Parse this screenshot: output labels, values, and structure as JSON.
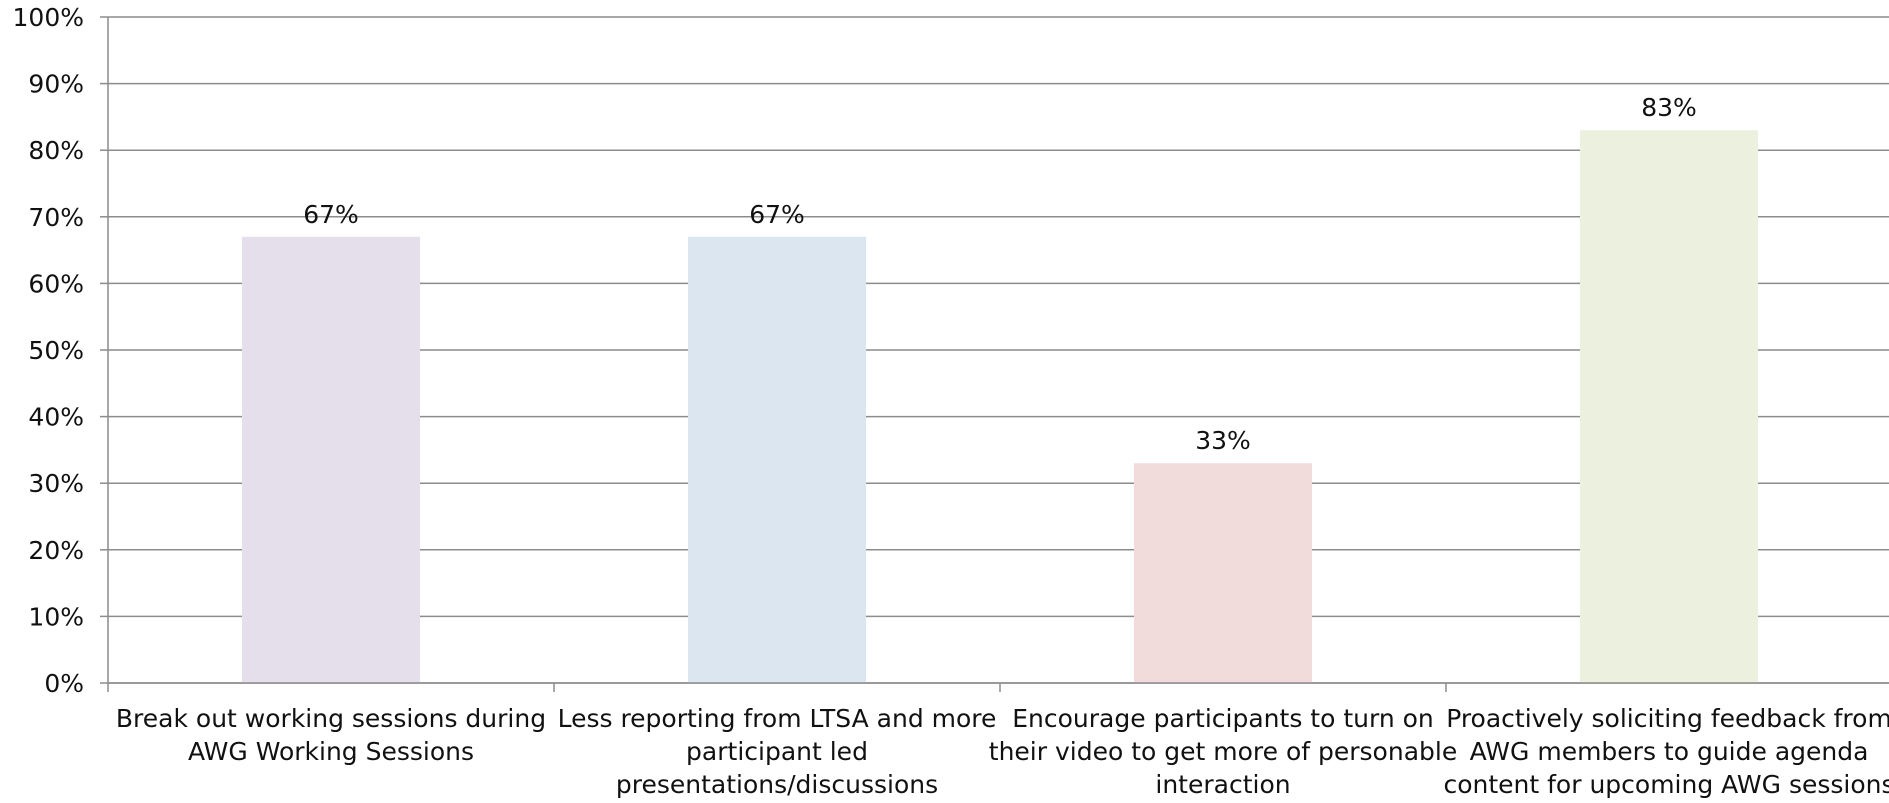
{
  "chart_data": {
    "type": "bar",
    "categories": [
      [
        "Break out working sessions during",
        "AWG Working Sessions"
      ],
      [
        "Less reporting from LTSA and more",
        "participant led",
        "presentations/discussions"
      ],
      [
        "Encourage participants to turn on",
        "their video to get more of personable",
        "interaction"
      ],
      [
        "Proactively soliciting feedback from",
        "AWG members to guide agenda",
        "content for upcoming AWG sessions"
      ]
    ],
    "values": [
      67,
      67,
      33,
      83
    ],
    "data_labels": [
      "67%",
      "67%",
      "33%",
      "83%"
    ],
    "bar_colors": [
      "#e4dfeb",
      "#dce6f1",
      "#f2dcdb",
      "#ebf1de"
    ],
    "ylim": [
      0,
      100
    ],
    "yticks": [
      {
        "value": 0,
        "label": "0%"
      },
      {
        "value": 10,
        "label": "10%"
      },
      {
        "value": 20,
        "label": "20%"
      },
      {
        "value": 30,
        "label": "30%"
      },
      {
        "value": 40,
        "label": "40%"
      },
      {
        "value": 50,
        "label": "50%"
      },
      {
        "value": 60,
        "label": "60%"
      },
      {
        "value": 70,
        "label": "70%"
      },
      {
        "value": 80,
        "label": "80%"
      },
      {
        "value": 90,
        "label": "90%"
      },
      {
        "value": 100,
        "label": "100%"
      }
    ],
    "grid": true,
    "gridline_color": "#8c8c8c",
    "axis_color": "#8c8c8c",
    "legend": "none"
  }
}
